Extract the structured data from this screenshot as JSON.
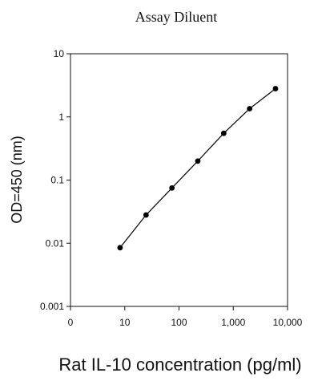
{
  "chart_data": {
    "type": "line",
    "title": "Assay Diluent",
    "xlabel": "Rat IL-10 concentration (pg/ml)",
    "ylabel": "OD=450 (nm)",
    "x_scale": "log",
    "y_scale": "log",
    "xlim": [
      1,
      10000
    ],
    "ylim": [
      0.001,
      10
    ],
    "x_ticks": [
      {
        "value": 1,
        "label": "0"
      },
      {
        "value": 10,
        "label": "10"
      },
      {
        "value": 100,
        "label": "100"
      },
      {
        "value": 1000,
        "label": "1,000"
      },
      {
        "value": 10000,
        "label": "10,000"
      }
    ],
    "y_ticks": [
      {
        "value": 0.001,
        "label": "0.001"
      },
      {
        "value": 0.01,
        "label": "0.01"
      },
      {
        "value": 0.1,
        "label": "0.1"
      },
      {
        "value": 1,
        "label": "1"
      },
      {
        "value": 10,
        "label": "10"
      }
    ],
    "grid": false,
    "legend": "none",
    "marker_color": "#000000",
    "line_color": "#000000",
    "series": [
      {
        "x": [
          8.2,
          24.7,
          74.1,
          222,
          667,
          2000,
          6000
        ],
        "y": [
          0.0085,
          0.028,
          0.075,
          0.2,
          0.55,
          1.35,
          2.8
        ]
      }
    ]
  }
}
